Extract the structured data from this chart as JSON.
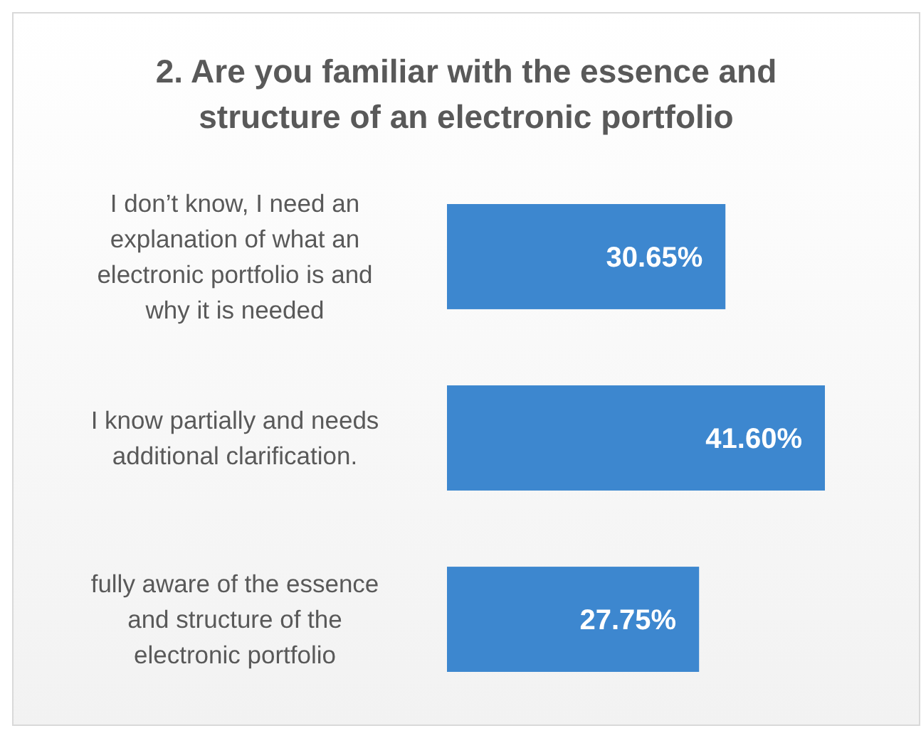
{
  "chart_data": {
    "type": "bar",
    "orientation": "horizontal",
    "relative": false,
    "title": "2. Are you familiar with the essence and structure of an electronic portfolio",
    "categories": [
      "I don’t know, I need an explanation of what an electronic portfolio is and why it is needed",
      "I know partially and needs additional clarification.",
      "fully aware of the essence and structure of the electronic portfolio"
    ],
    "values": [
      30.65,
      41.6,
      27.75
    ],
    "value_labels": [
      "30.65%",
      "41.60%",
      "27.75%"
    ],
    "color": "#3d87cf"
  }
}
